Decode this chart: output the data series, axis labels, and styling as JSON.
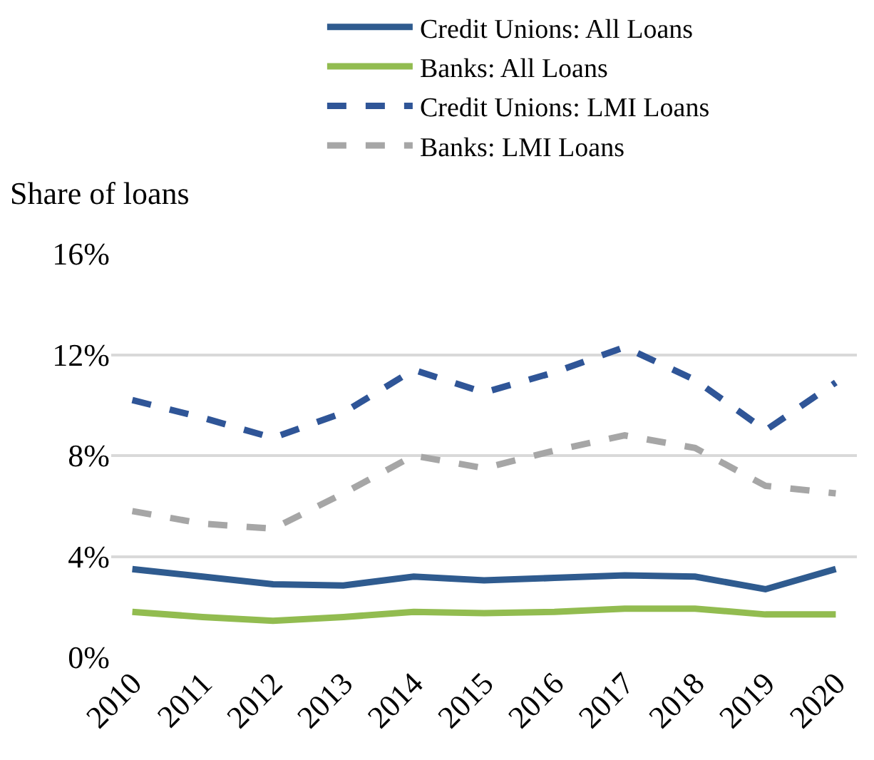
{
  "chart_data": {
    "type": "line",
    "ylabel": "Share of loans",
    "categories": [
      "2010",
      "2011",
      "2012",
      "2013",
      "2014",
      "2015",
      "2016",
      "2017",
      "2018",
      "2019",
      "2020"
    ],
    "series": [
      {
        "name": "Credit Unions: All Loans",
        "color": "#2f5b8f",
        "line_style": "solid",
        "values": [
          3.5,
          3.2,
          2.9,
          2.85,
          3.2,
          3.05,
          3.15,
          3.25,
          3.2,
          2.7,
          3.5
        ]
      },
      {
        "name": "Banks: All Loans",
        "color": "#92bc50",
        "line_style": "solid",
        "values": [
          1.8,
          1.6,
          1.45,
          1.6,
          1.8,
          1.75,
          1.8,
          1.93,
          1.93,
          1.7,
          1.7
        ]
      },
      {
        "name": "Credit Unions: LMI Loans",
        "color": "#2f5597",
        "line_style": "dashed",
        "values": [
          10.2,
          9.5,
          8.7,
          9.7,
          11.4,
          10.5,
          11.3,
          12.3,
          11.0,
          9.0,
          10.9
        ]
      },
      {
        "name": "Banks: LMI Loans",
        "color": "#a6a6a6",
        "line_style": "dashed",
        "values": [
          5.8,
          5.3,
          5.1,
          6.5,
          8.0,
          7.5,
          8.2,
          8.8,
          8.3,
          6.8,
          6.5
        ]
      }
    ],
    "ylim": [
      0,
      16
    ],
    "yticks": [
      {
        "value": 0,
        "label": "0%"
      },
      {
        "value": 4,
        "label": "4%"
      },
      {
        "value": 8,
        "label": "8%"
      },
      {
        "value": 12,
        "label": "12%"
      },
      {
        "value": 16,
        "label": "16%"
      }
    ],
    "grid": "y",
    "legend": "top",
    "marker": "none"
  }
}
